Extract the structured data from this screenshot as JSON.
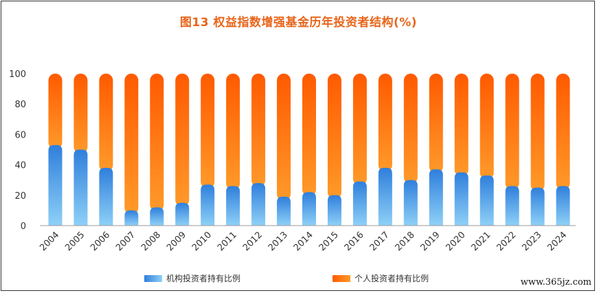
{
  "chart_data": {
    "type": "bar",
    "stacked": true,
    "title": "图13 权益指数增强基金历年投资者结构(%)",
    "xlabel": "",
    "ylabel": "",
    "ylim": [
      0,
      100
    ],
    "yticks": [
      0,
      20,
      40,
      60,
      80,
      100
    ],
    "grid": false,
    "legend_position": "bottom",
    "categories": [
      "2004",
      "2005",
      "2006",
      "2007",
      "2008",
      "2009",
      "2010",
      "2011",
      "2012",
      "2013",
      "2014",
      "2015",
      "2016",
      "2017",
      "2018",
      "2019",
      "2020",
      "2021",
      "2022",
      "2023",
      "2024"
    ],
    "series": [
      {
        "name": "机构投资者持有比例",
        "color": "#3a8ee0",
        "values": [
          53,
          50,
          38,
          10,
          12,
          15,
          27,
          26,
          28,
          19,
          22,
          20,
          29,
          38,
          30,
          37,
          35,
          33,
          26,
          25,
          26
        ]
      },
      {
        "name": "个人投资者持有比例",
        "color": "#ff6a00",
        "values": [
          47,
          50,
          62,
          90,
          88,
          85,
          73,
          74,
          72,
          81,
          78,
          80,
          71,
          62,
          70,
          63,
          65,
          67,
          74,
          75,
          74
        ]
      }
    ]
  },
  "legend": {
    "institutional": "机构投资者持有比例",
    "individual": "个人投资者持有比例"
  },
  "watermark": "www.365jz.com"
}
